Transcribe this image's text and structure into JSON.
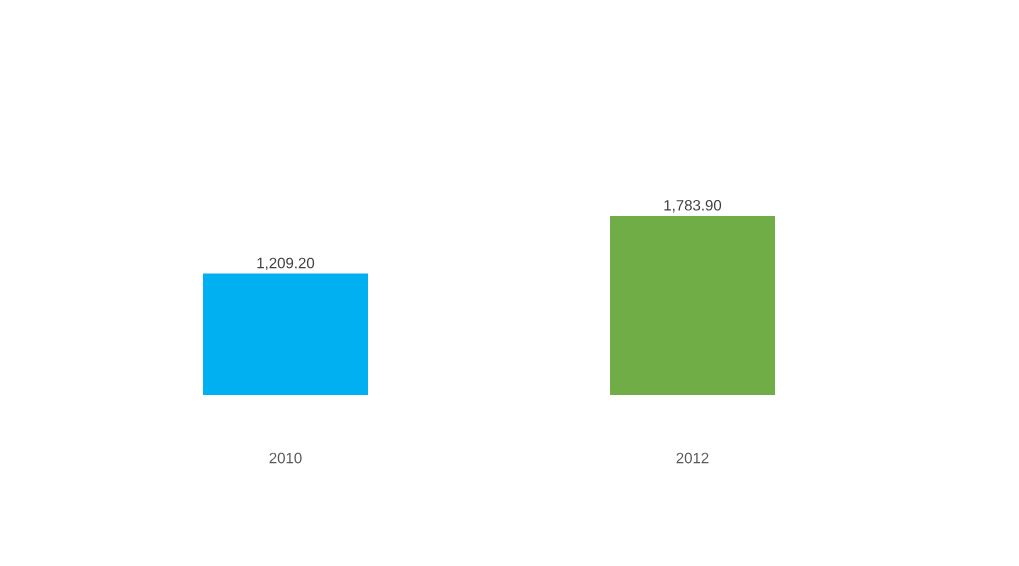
{
  "chart_data": {
    "type": "bar",
    "categories": [
      "2010",
      "2012"
    ],
    "values": [
      1209.2,
      1783.9
    ],
    "colors": [
      "#00b0f0",
      "#70ad47"
    ],
    "value_labels": [
      "1,209.20",
      "1,783.90"
    ]
  }
}
